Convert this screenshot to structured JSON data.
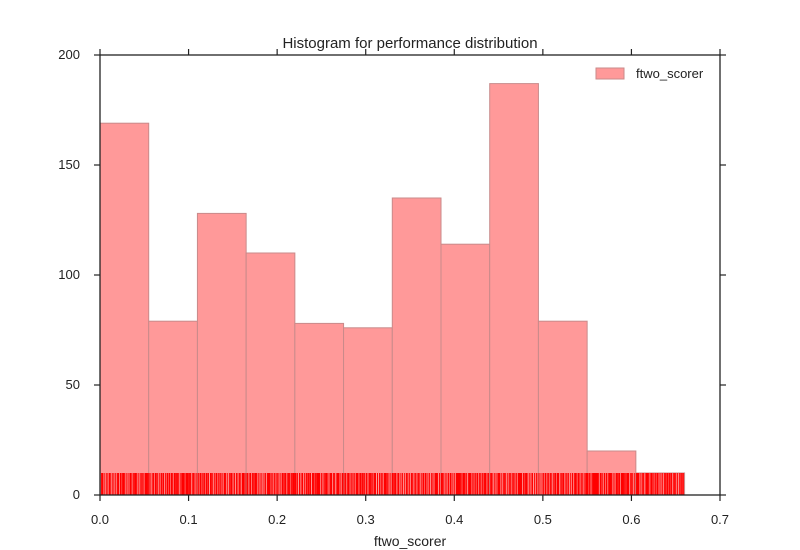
{
  "chart_data": {
    "type": "bar",
    "title": "Histogram for performance distribution",
    "xlabel": "ftwo_scorer",
    "ylabel": "",
    "xlim": [
      0.0,
      0.7
    ],
    "ylim": [
      0,
      200
    ],
    "x_ticks": [
      0.0,
      0.1,
      0.2,
      0.3,
      0.4,
      0.5,
      0.6,
      0.7
    ],
    "x_tick_labels": [
      "0.0",
      "0.1",
      "0.2",
      "0.3",
      "0.4",
      "0.5",
      "0.6",
      "0.7"
    ],
    "y_ticks": [
      0,
      50,
      100,
      150,
      200
    ],
    "y_tick_labels": [
      "0",
      "50",
      "100",
      "150",
      "200"
    ],
    "bins": [
      {
        "x0": 0.0,
        "x1": 0.055,
        "count": 169
      },
      {
        "x0": 0.055,
        "x1": 0.11,
        "count": 79
      },
      {
        "x0": 0.11,
        "x1": 0.165,
        "count": 128
      },
      {
        "x0": 0.165,
        "x1": 0.22,
        "count": 110
      },
      {
        "x0": 0.22,
        "x1": 0.275,
        "count": 78
      },
      {
        "x0": 0.275,
        "x1": 0.33,
        "count": 76
      },
      {
        "x0": 0.33,
        "x1": 0.385,
        "count": 135
      },
      {
        "x0": 0.385,
        "x1": 0.44,
        "count": 114
      },
      {
        "x0": 0.44,
        "x1": 0.495,
        "count": 187
      },
      {
        "x0": 0.495,
        "x1": 0.55,
        "count": 79
      },
      {
        "x0": 0.55,
        "x1": 0.605,
        "count": 20
      },
      {
        "x0": 0.605,
        "x1": 0.66,
        "count": 10
      }
    ],
    "rug": {
      "min": 0.0,
      "max": 0.66,
      "height": 10
    },
    "series": [
      {
        "name": "ftwo_scorer",
        "color": "#ff6666"
      }
    ],
    "colors": {
      "bar_fill": "#ff9999",
      "bar_edge": "#c98a8a",
      "rug": "#ff0000"
    },
    "legend": {
      "position": "top-right"
    },
    "grid": false
  }
}
